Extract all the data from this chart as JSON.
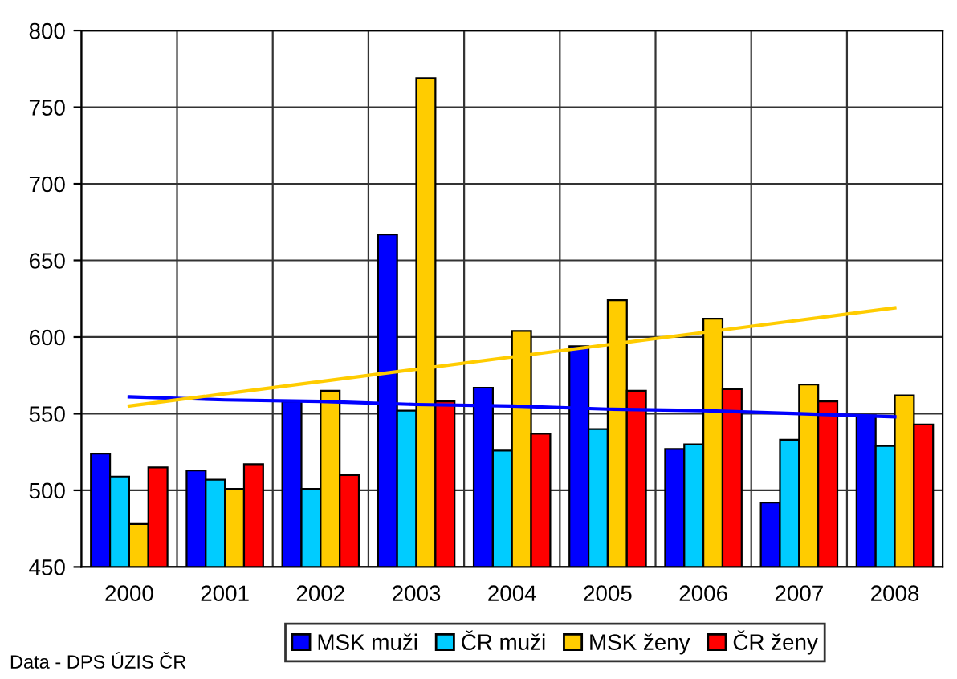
{
  "chart_data": {
    "type": "bar",
    "categories": [
      "2000",
      "2001",
      "2002",
      "2003",
      "2004",
      "2005",
      "2006",
      "2007",
      "2008"
    ],
    "series": [
      {
        "name": "MSK muži",
        "color": "#0000ff",
        "values": [
          524,
          513,
          558,
          667,
          567,
          594,
          527,
          492,
          549
        ]
      },
      {
        "name": "ČR muži",
        "color": "#00ccff",
        "values": [
          509,
          507,
          501,
          552,
          526,
          540,
          530,
          533,
          529
        ]
      },
      {
        "name": "MSK ženy",
        "color": "#ffcc00",
        "values": [
          478,
          501,
          565,
          769,
          604,
          624,
          612,
          569,
          562
        ]
      },
      {
        "name": "ČR ženy",
        "color": "#ff0000",
        "values": [
          515,
          517,
          510,
          558,
          537,
          565,
          566,
          558,
          543
        ]
      },
      {
        "type": "line",
        "color": "#0000ff",
        "values": [
          561,
          559,
          558,
          556,
          555,
          553,
          552,
          550,
          548
        ]
      },
      {
        "type": "line",
        "color": "#ffcc00",
        "values": [
          555,
          563,
          571,
          579,
          587,
          595,
          603,
          611,
          619
        ]
      }
    ],
    "ylim": [
      450,
      800
    ],
    "yticks": [
      450,
      500,
      550,
      600,
      650,
      700,
      750,
      800
    ],
    "grid": true,
    "legend": "bottom",
    "annotations": [
      "Data - DPS ÚZIS ČR"
    ]
  }
}
